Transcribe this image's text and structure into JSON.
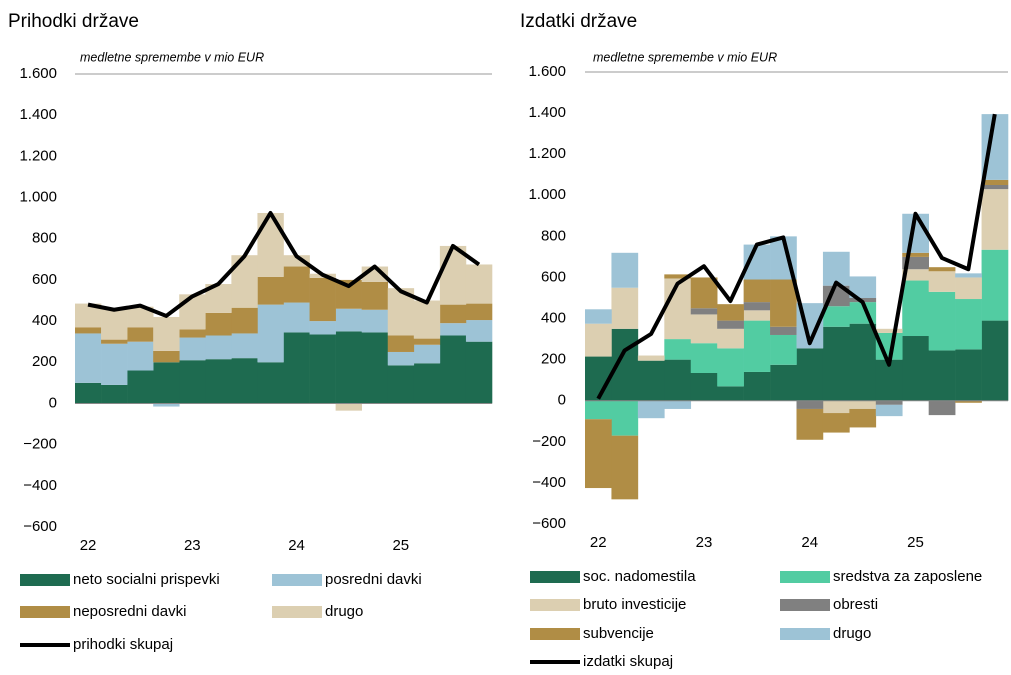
{
  "chart_data": [
    {
      "type": "bar",
      "stacked": true,
      "title": "Prihodki države",
      "subtitle": "medletne spremembe v mio EUR",
      "categories": [
        "22",
        null,
        null,
        null,
        "23",
        null,
        null,
        null,
        "24",
        null,
        null,
        null,
        "25",
        null,
        null,
        null
      ],
      "ylim": [
        -600,
        1600
      ],
      "yticks": [
        {
          "value": -600,
          "label": "−600"
        },
        {
          "value": -400,
          "label": "−400"
        },
        {
          "value": -200,
          "label": "−200"
        },
        0,
        200,
        400,
        600,
        800,
        {
          "value": 1000,
          "label": "1.000"
        },
        {
          "value": 1200,
          "label": "1.200"
        },
        {
          "value": 1400,
          "label": "1.400"
        },
        {
          "value": 1600,
          "label": "1.600"
        }
      ],
      "series": [
        {
          "name": "neto socialni prispevki",
          "color": "#1e6b50",
          "values": [
            100,
            90,
            160,
            200,
            210,
            215,
            220,
            200,
            345,
            335,
            350,
            345,
            185,
            195,
            330,
            300
          ]
        },
        {
          "name": "posredni davki",
          "color": "#9dc3d6",
          "values": [
            240,
            200,
            140,
            -15,
            110,
            115,
            120,
            280,
            145,
            65,
            110,
            110,
            65,
            90,
            60,
            105
          ]
        },
        {
          "name": "neposredni davki",
          "color": "#b08d45",
          "values": [
            30,
            20,
            70,
            55,
            40,
            110,
            125,
            135,
            175,
            210,
            140,
            135,
            80,
            30,
            90,
            80
          ]
        },
        {
          "name": "drugo",
          "color": "#dccfb1",
          "values": [
            115,
            155,
            100,
            165,
            170,
            140,
            255,
            310,
            55,
            20,
            -35,
            75,
            230,
            185,
            285,
            190
          ]
        },
        {
          "name": "prihodki skupaj",
          "type": "line",
          "color": "#000000",
          "values": [
            480,
            455,
            475,
            425,
            520,
            580,
            715,
            925,
            715,
            625,
            570,
            665,
            545,
            490,
            765,
            675
          ]
        }
      ]
    },
    {
      "type": "bar",
      "stacked": true,
      "title": "Izdatki države",
      "subtitle": "medletne spremembe v mio EUR",
      "categories": [
        "22",
        null,
        null,
        null,
        "23",
        null,
        null,
        null,
        "24",
        null,
        null,
        null,
        "25",
        null,
        null,
        null
      ],
      "ylim": [
        -600,
        1600
      ],
      "yticks": [
        {
          "value": -600,
          "label": "−600"
        },
        {
          "value": -400,
          "label": "−400"
        },
        {
          "value": -200,
          "label": "−200"
        },
        0,
        200,
        400,
        600,
        800,
        {
          "value": 1000,
          "label": "1.000"
        },
        {
          "value": 1200,
          "label": "1.200"
        },
        {
          "value": 1400,
          "label": "1.400"
        },
        {
          "value": 1600,
          "label": "1.600"
        }
      ],
      "series": [
        {
          "name": "soc. nadomestila",
          "color": "#1e6b50",
          "values": [
            215,
            350,
            195,
            200,
            135,
            70,
            140,
            175,
            255,
            360,
            375,
            200,
            315,
            245,
            250,
            390
          ]
        },
        {
          "name": "sredstva za zaposlene",
          "color": "#52cca2",
          "values": [
            -90,
            -170,
            0,
            100,
            145,
            185,
            250,
            145,
            0,
            100,
            105,
            130,
            270,
            285,
            245,
            345
          ]
        },
        {
          "name": "bruto investicije",
          "color": "#dccfb1",
          "values": [
            160,
            200,
            25,
            295,
            140,
            95,
            50,
            0,
            0,
            -60,
            -40,
            20,
            55,
            100,
            105,
            295
          ]
        },
        {
          "name": "obresti",
          "color": "#808080",
          "values": [
            0,
            0,
            0,
            0,
            30,
            40,
            40,
            40,
            -40,
            100,
            20,
            -20,
            60,
            -70,
            0,
            20
          ]
        },
        {
          "name": "subvencije",
          "color": "#b08d45",
          "values": [
            -335,
            -310,
            0,
            20,
            150,
            80,
            110,
            230,
            -150,
            -95,
            -90,
            0,
            20,
            20,
            -10,
            25
          ]
        },
        {
          "name": "drugo",
          "color": "#9dc3d6",
          "values": [
            70,
            170,
            -85,
            -40,
            0,
            0,
            170,
            210,
            220,
            165,
            105,
            -55,
            190,
            0,
            20,
            320
          ]
        },
        {
          "name": "izdatki skupaj",
          "type": "line",
          "color": "#000000",
          "values": [
            10,
            245,
            325,
            570,
            655,
            485,
            760,
            795,
            280,
            575,
            480,
            175,
            910,
            695,
            640,
            1395
          ]
        }
      ]
    }
  ]
}
